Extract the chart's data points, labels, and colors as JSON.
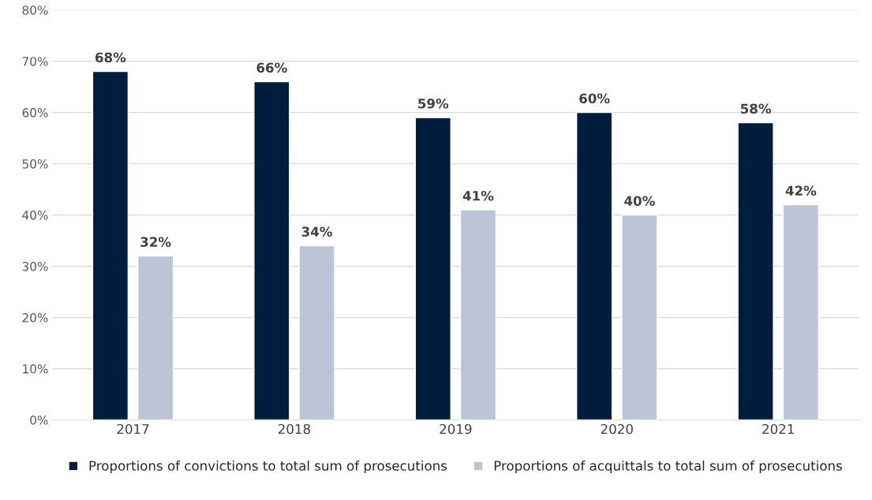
{
  "chart_data": {
    "type": "bar",
    "categories": [
      "2017",
      "2018",
      "2019",
      "2020",
      "2021"
    ],
    "series": [
      {
        "name": "Proportions of convictions to total sum of prosecutions",
        "color": "#001d3d",
        "values": [
          68,
          66,
          59,
          60,
          58
        ],
        "value_labels": [
          "68%",
          "66%",
          "59%",
          "60%",
          "58%"
        ]
      },
      {
        "name": "Proportions of acquittals to total sum of prosecutions",
        "color": "#bcc4d5",
        "values": [
          32,
          34,
          41,
          40,
          42
        ],
        "value_labels": [
          "32%",
          "34%",
          "41%",
          "40%",
          "42%"
        ]
      }
    ],
    "ylim": [
      0,
      80
    ],
    "yticks": [
      {
        "value": 0,
        "label": "0%"
      },
      {
        "value": 10,
        "label": "10%"
      },
      {
        "value": 20,
        "label": "20%"
      },
      {
        "value": 30,
        "label": "30%"
      },
      {
        "value": 40,
        "label": "40%"
      },
      {
        "value": 50,
        "label": "50%"
      },
      {
        "value": 60,
        "label": "60%"
      },
      {
        "value": 70,
        "label": "70%"
      },
      {
        "value": 80,
        "label": "80%"
      }
    ],
    "grid": "y",
    "legend": "bottom"
  }
}
